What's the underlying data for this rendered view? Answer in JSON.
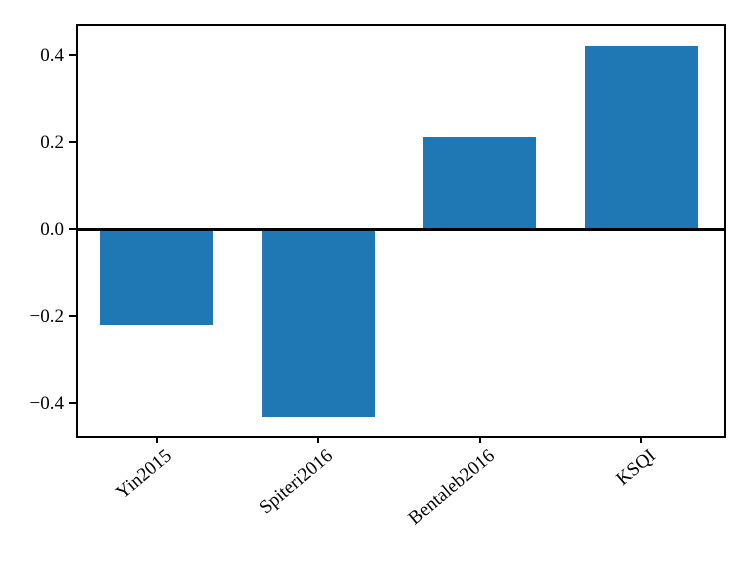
{
  "chart_data": {
    "type": "bar",
    "title": "",
    "xlabel": "",
    "ylabel": "",
    "categories": [
      "Yin2015",
      "Spiteri2016",
      "Bentaleb2016",
      "KSQI"
    ],
    "values": [
      -0.22,
      -0.43,
      0.21,
      0.42
    ],
    "ylim": [
      -0.47,
      0.47
    ],
    "yticks": [
      -0.4,
      -0.2,
      0.0,
      0.2,
      0.4
    ],
    "ytick_labels": [
      "−0.4",
      "−0.2",
      "0.0",
      "0.2",
      "0.4"
    ],
    "bar_color": "#1f77b4",
    "bar_width_fraction": 0.7,
    "x_tick_rotation_deg": 40,
    "zero_line_color": "#000000",
    "axis_color": "#000000",
    "background_color": "#ffffff",
    "grid": false,
    "legend": false
  }
}
